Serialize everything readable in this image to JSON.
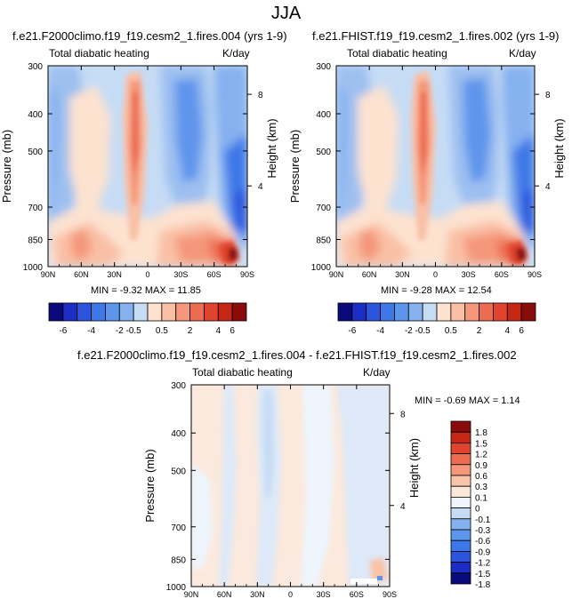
{
  "title": "JJA",
  "colors": {
    "ramp12": [
      "#0a0a7c",
      "#1b2dc2",
      "#2a55dc",
      "#3e78e8",
      "#5e95ec",
      "#86b1ef",
      "#c6dcf5",
      "#fde2d0",
      "#f9c0a5",
      "#f4977a",
      "#ec6c52",
      "#e0442e",
      "#c52615",
      "#8a0c0a"
    ],
    "ramp_diff": [
      "#0a0a7c",
      "#1b2dc2",
      "#2a55dc",
      "#3e78e8",
      "#5e95ec",
      "#86b1ef",
      "#c6dcf5",
      "#eef5fc",
      "#fde7d8",
      "#f9c4a8",
      "#f4977a",
      "#ec6c52",
      "#e0442e",
      "#c52615",
      "#8a0c0a"
    ]
  },
  "panels": [
    {
      "id": "left",
      "title": "f.e21.F2000climo.f19_f19.cesm2_1.fires.004 (yrs 1-9)",
      "left_label": "Total diabatic heating",
      "right_label": "K/day",
      "stats": "MIN = -9.32  MAX = 11.85"
    },
    {
      "id": "right",
      "title": "f.e21.FHIST.f19_f19.cesm2_1.fires.002 (yrs 1-9)",
      "left_label": "Total diabatic heating",
      "right_label": "K/day",
      "stats": "MIN = -9.28  MAX = 12.54"
    },
    {
      "id": "diff",
      "title": "f.e21.F2000climo.f19_f19.cesm2_1.fires.004 - f.e21.FHIST.f19_f19.cesm2_1.fires.002",
      "left_label": "Total diabatic heating",
      "right_label": "K/day",
      "stats": "MIN =  -0.69  MAX =   1.14"
    }
  ],
  "axes": {
    "ylabel": "Pressure (mb)",
    "ylabel_right": "Height (km)",
    "pressure_ticks": [
      "300",
      "400",
      "500",
      "700",
      "850",
      "1000"
    ],
    "height_ticks": [
      "8",
      "4"
    ],
    "lat_ticks": [
      "90N",
      "60N",
      "30N",
      "0",
      "30S",
      "60S",
      "90S"
    ]
  },
  "colorbars": {
    "top_labels": [
      "-6",
      "-4",
      "-2",
      "-0.5",
      "0.5",
      "2",
      "4",
      "6"
    ],
    "diff_labels": [
      "1.8",
      "1.5",
      "1.2",
      "0.9",
      "0.6",
      "0.3",
      "0.1",
      "0",
      "-0.1",
      "-0.3",
      "-0.6",
      "-0.9",
      "-1.2",
      "-1.5",
      "-1.8"
    ]
  },
  "chart_data": [
    {
      "type": "heatmap",
      "title": "f.e21.F2000climo.f19_f19.cesm2_1.fires.004 (yrs 1-9)",
      "subtitle": "Total diabatic heating",
      "units": "K/day",
      "xlabel": "",
      "ylabel": "Pressure (mb)",
      "ylabel_right": "Height (km)",
      "x_range": [
        "90N",
        "90S"
      ],
      "y_range_mb": [
        1000,
        300
      ],
      "y_scale": "log",
      "min": -9.32,
      "max": 11.85,
      "contour_levels": [
        -6,
        -5,
        -4,
        -3,
        -2,
        -1,
        -0.5,
        0.5,
        1,
        2,
        3,
        4,
        5,
        6
      ]
    },
    {
      "type": "heatmap",
      "title": "f.e21.FHIST.f19_f19.cesm2_1.fires.002 (yrs 1-9)",
      "subtitle": "Total diabatic heating",
      "units": "K/day",
      "xlabel": "",
      "ylabel": "Pressure (mb)",
      "ylabel_right": "Height (km)",
      "x_range": [
        "90N",
        "90S"
      ],
      "y_range_mb": [
        1000,
        300
      ],
      "y_scale": "log",
      "min": -9.28,
      "max": 12.54,
      "contour_levels": [
        -6,
        -5,
        -4,
        -3,
        -2,
        -1,
        -0.5,
        0.5,
        1,
        2,
        3,
        4,
        5,
        6
      ]
    },
    {
      "type": "heatmap",
      "title": "f.e21.F2000climo.f19_f19.cesm2_1.fires.004 - f.e21.FHIST.f19_f19.cesm2_1.fires.002",
      "subtitle": "Total diabatic heating",
      "units": "K/day",
      "xlabel": "",
      "ylabel": "Pressure (mb)",
      "ylabel_right": "Height (km)",
      "x_range": [
        "90N",
        "90S"
      ],
      "y_range_mb": [
        1000,
        300
      ],
      "y_scale": "log",
      "min": -0.69,
      "max": 1.14,
      "contour_levels": [
        -1.8,
        -1.5,
        -1.2,
        -0.9,
        -0.6,
        -0.3,
        -0.1,
        0,
        0.1,
        0.3,
        0.6,
        0.9,
        1.2,
        1.5,
        1.8
      ]
    }
  ]
}
